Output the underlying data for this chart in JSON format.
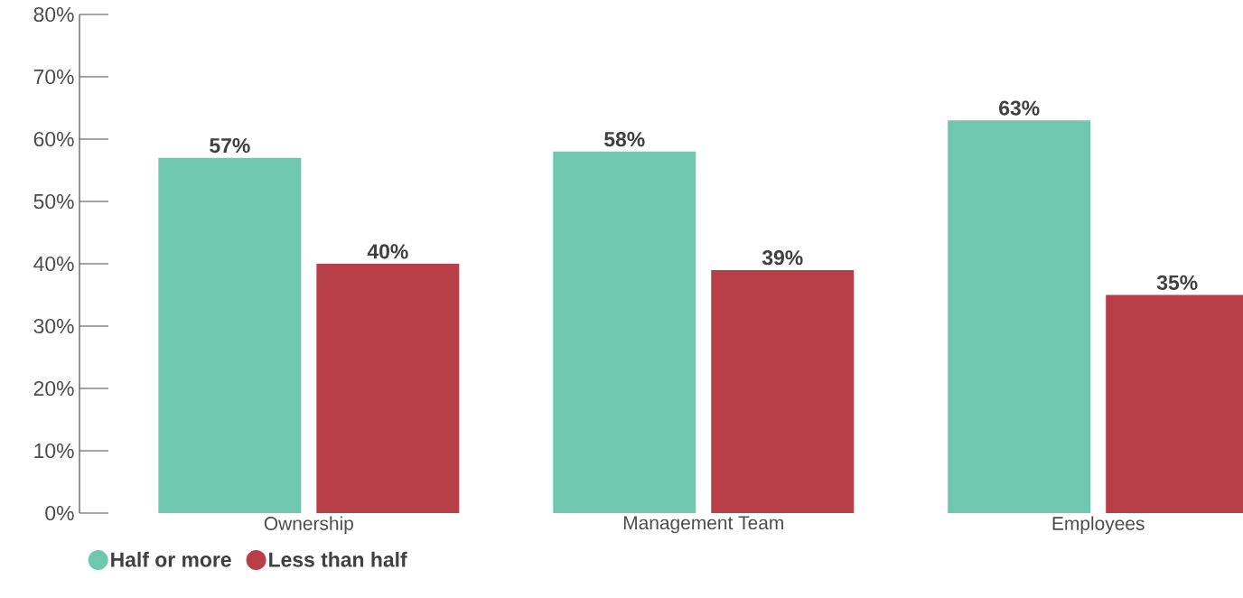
{
  "chart_data": {
    "type": "bar",
    "categories": [
      "Ownership",
      "Management Team",
      "Employees"
    ],
    "series": [
      {
        "name": "Half or more",
        "color": "#6fc7ae",
        "values": [
          57,
          58,
          63
        ],
        "value_labels": [
          "57%",
          "58%",
          "63%"
        ]
      },
      {
        "name": "Less than half",
        "color": "#b83e48",
        "values": [
          40,
          39,
          35
        ],
        "value_labels": [
          "40%",
          "39%",
          "35%"
        ]
      }
    ],
    "ylim": [
      0,
      80
    ],
    "yticks": [
      {
        "value": 0,
        "label": "0%"
      },
      {
        "value": 10,
        "label": "10%"
      },
      {
        "value": 20,
        "label": "20%"
      },
      {
        "value": 30,
        "label": "30%"
      },
      {
        "value": 40,
        "label": "40%"
      },
      {
        "value": 50,
        "label": "50%"
      },
      {
        "value": 60,
        "label": "60%"
      },
      {
        "value": 70,
        "label": "70%"
      },
      {
        "value": 80,
        "label": "80%"
      }
    ],
    "legend": "bottom left",
    "grid": false
  }
}
